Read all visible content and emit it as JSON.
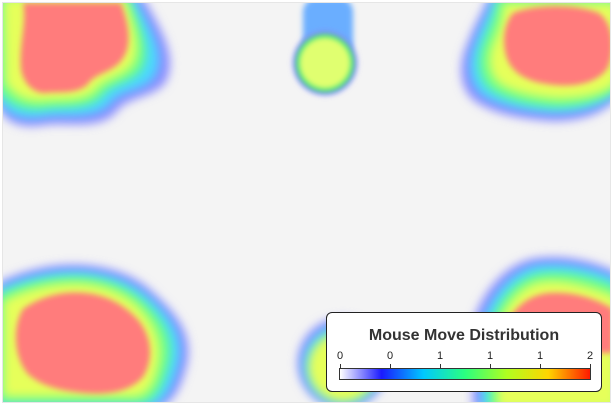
{
  "legend": {
    "title": "Mouse Move Distribution",
    "ticks": [
      "0",
      "0",
      "1",
      "1",
      "1",
      "2"
    ]
  },
  "colors": {
    "background": "#f4f4f4",
    "scale": [
      "#ffffff",
      "#1a1aff",
      "#00c8ff",
      "#2aff7f",
      "#b0ff20",
      "#ffd400",
      "#ff1a00"
    ],
    "hot": "#ff7c7c"
  }
}
